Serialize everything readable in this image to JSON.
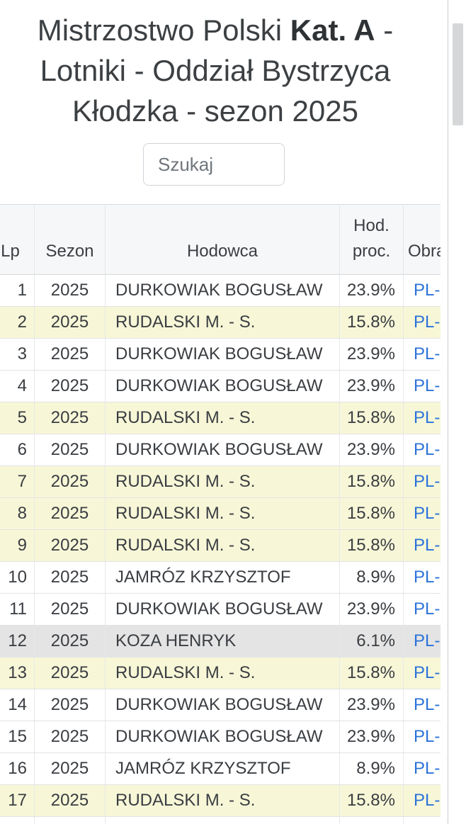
{
  "title": {
    "line1_pre": "Mistrzostwo Polski ",
    "line1_bold": "Kat. A",
    "line1_post": " -",
    "line2": "Lotniki - Oddział Bystrzyca",
    "line3": "Kłodzka - sezon 2025"
  },
  "search": {
    "placeholder": "Szukaj"
  },
  "table": {
    "columns": [
      "Lp",
      "Sezon",
      "Hodowca",
      "Hod. proc.",
      "Obrączka"
    ],
    "rows": [
      {
        "lp": "1",
        "sezon": "2025",
        "hodowca": "DURKOWIAK BOGUSŁAW",
        "proc": "23.9%",
        "ring": "PL-",
        "bg": "white"
      },
      {
        "lp": "2",
        "sezon": "2025",
        "hodowca": "RUDALSKI M. - S.",
        "proc": "15.8%",
        "ring": "PL-",
        "bg": "yellow"
      },
      {
        "lp": "3",
        "sezon": "2025",
        "hodowca": "DURKOWIAK BOGUSŁAW",
        "proc": "23.9%",
        "ring": "PL-",
        "bg": "white"
      },
      {
        "lp": "4",
        "sezon": "2025",
        "hodowca": "DURKOWIAK BOGUSŁAW",
        "proc": "23.9%",
        "ring": "PL-",
        "bg": "white"
      },
      {
        "lp": "5",
        "sezon": "2025",
        "hodowca": "RUDALSKI M. - S.",
        "proc": "15.8%",
        "ring": "PL-",
        "bg": "yellow"
      },
      {
        "lp": "6",
        "sezon": "2025",
        "hodowca": "DURKOWIAK BOGUSŁAW",
        "proc": "23.9%",
        "ring": "PL-",
        "bg": "white"
      },
      {
        "lp": "7",
        "sezon": "2025",
        "hodowca": "RUDALSKI M. - S.",
        "proc": "15.8%",
        "ring": "PL-",
        "bg": "yellow"
      },
      {
        "lp": "8",
        "sezon": "2025",
        "hodowca": "RUDALSKI M. - S.",
        "proc": "15.8%",
        "ring": "PL-",
        "bg": "yellow"
      },
      {
        "lp": "9",
        "sezon": "2025",
        "hodowca": "RUDALSKI M. - S.",
        "proc": "15.8%",
        "ring": "PL-",
        "bg": "yellow"
      },
      {
        "lp": "10",
        "sezon": "2025",
        "hodowca": "JAMRÓZ KRZYSZTOF",
        "proc": "8.9%",
        "ring": "PL-",
        "bg": "white"
      },
      {
        "lp": "11",
        "sezon": "2025",
        "hodowca": "DURKOWIAK BOGUSŁAW",
        "proc": "23.9%",
        "ring": "PL-",
        "bg": "white"
      },
      {
        "lp": "12",
        "sezon": "2025",
        "hodowca": "KOZA HENRYK",
        "proc": "6.1%",
        "ring": "PL-",
        "bg": "gray"
      },
      {
        "lp": "13",
        "sezon": "2025",
        "hodowca": "RUDALSKI M. - S.",
        "proc": "15.8%",
        "ring": "PL-",
        "bg": "yellow"
      },
      {
        "lp": "14",
        "sezon": "2025",
        "hodowca": "DURKOWIAK BOGUSŁAW",
        "proc": "23.9%",
        "ring": "PL-",
        "bg": "white"
      },
      {
        "lp": "15",
        "sezon": "2025",
        "hodowca": "DURKOWIAK BOGUSŁAW",
        "proc": "23.9%",
        "ring": "PL-",
        "bg": "white"
      },
      {
        "lp": "16",
        "sezon": "2025",
        "hodowca": "JAMRÓZ KRZYSZTOF",
        "proc": "8.9%",
        "ring": "PL-",
        "bg": "white"
      },
      {
        "lp": "17",
        "sezon": "2025",
        "hodowca": "RUDALSKI M. - S.",
        "proc": "15.8%",
        "ring": "PL-",
        "bg": "yellow"
      },
      {
        "lp": "",
        "sezon": "",
        "hodowca": "",
        "proc": "",
        "ring": "",
        "bg": "white"
      }
    ]
  },
  "colors": {
    "link": "#2b72d9",
    "row_highlight": "#f7f7d8",
    "row_gray": "#e4e4e4",
    "header_bg": "#f6f7f8"
  }
}
